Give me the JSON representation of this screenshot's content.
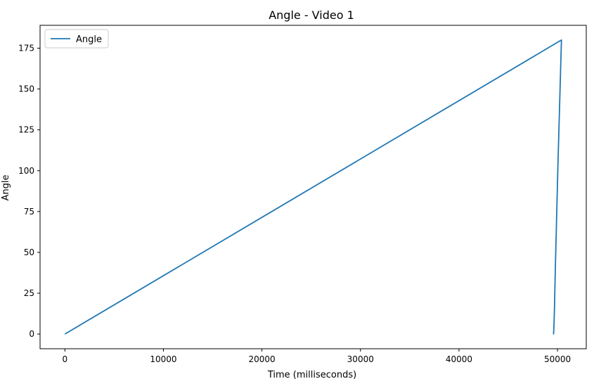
{
  "chart_data": {
    "type": "line",
    "title": "Angle - Video 1",
    "xlabel": "Time (milliseconds)",
    "ylabel": "Angle",
    "xlim": [
      -2520,
      52920
    ],
    "ylim": [
      -9,
      189
    ],
    "xticks": [
      0,
      10000,
      20000,
      30000,
      40000,
      50000
    ],
    "yticks": [
      0,
      25,
      50,
      75,
      100,
      125,
      150,
      175
    ],
    "grid": false,
    "legend_position": "top-left",
    "series": [
      {
        "name": "Angle",
        "color": "#1f77b4",
        "x": [
          0,
          50400,
          50050,
          49780,
          49690,
          49640,
          49610,
          49590,
          49570
        ],
        "y": [
          0,
          180,
          105,
          40,
          15,
          5,
          1,
          0,
          0
        ]
      }
    ]
  }
}
